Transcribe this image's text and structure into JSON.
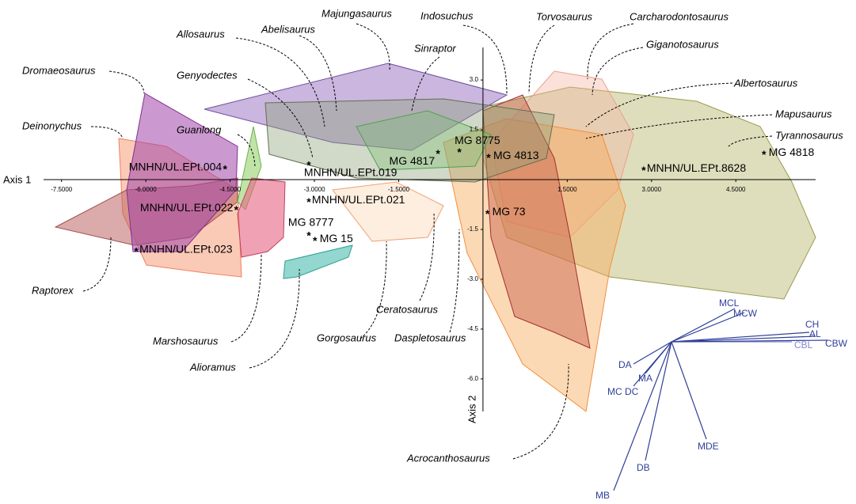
{
  "chart_data": {
    "type": "scatter",
    "x_label": "Axis 1",
    "y_label": "Axis 2",
    "xlim": [
      -7.82,
      5.92
    ],
    "ylim": [
      -6.98,
      3.98
    ],
    "xticks": [
      {
        "value": -7.5,
        "label": "-7.5000"
      },
      {
        "value": -6.0,
        "label": "-6.0000"
      },
      {
        "value": -4.5,
        "label": "-4.5000"
      },
      {
        "value": -3.0,
        "label": "-3.0000"
      },
      {
        "value": -1.5,
        "label": "-1.5000"
      },
      {
        "value": 1.5,
        "label": "1.5000"
      },
      {
        "value": 3.0,
        "label": "3.0000"
      },
      {
        "value": 4.5,
        "label": "4.5000"
      }
    ],
    "yticks": [
      {
        "value": 3.0,
        "label": "3.0"
      },
      {
        "value": 1.5,
        "label": "1.5"
      },
      {
        "value": -1.5,
        "label": "-1.5"
      },
      {
        "value": -3.0,
        "label": "-3.0"
      },
      {
        "value": -4.5,
        "label": "-4.5"
      },
      {
        "value": -6.0,
        "label": "-6.0"
      }
    ],
    "point_labels": [
      "MNHN/UL.EPt.004",
      "MNHN/UL.EPt.019",
      "MNHN/UL.EPt.022",
      "MNHN/UL.EPt.021",
      "MNHN/UL.EPt.023",
      "MG 8777",
      "MG 15",
      "MG 4817",
      "MG 8775",
      "MG 4813",
      "MG 73",
      "MNHN/UL.EPt.8628",
      "MG 4818"
    ],
    "x": [
      -4.59,
      -3.1,
      -4.39,
      -3.1,
      -6.17,
      -3.1,
      -2.99,
      -0.8,
      -0.42,
      0.1,
      0.08,
      2.86,
      5.0
    ],
    "y": [
      0.36,
      0.48,
      -0.86,
      -0.62,
      -2.12,
      -1.64,
      -1.79,
      0.83,
      0.88,
      0.71,
      -0.98,
      0.33,
      0.81
    ],
    "genera": [
      "Majungasaurus",
      "Indosuchus",
      "Torvosaurus",
      "Carcharodontosaurus",
      "Allosaurus",
      "Abelisaurus",
      "Giganotosaurus",
      "Sinraptor",
      "Dromaeosaurus",
      "Genyodectes",
      "Albertosaurus",
      "Deinonychus",
      "Guanlong",
      "Mapusaurus",
      "Tyrannosaurus",
      "Raptorex",
      "Marshosaurus",
      "Gorgosaurus",
      "Ceratosaurus",
      "Daspletosaurus",
      "Alioramus",
      "Acrocanthosaurus"
    ],
    "loadings": [
      "MCL",
      "MCW",
      "CH",
      "AL",
      "CBL",
      "CBW",
      "DA",
      "MA",
      "MC DC",
      "MDE",
      "DB",
      "MB"
    ]
  }
}
